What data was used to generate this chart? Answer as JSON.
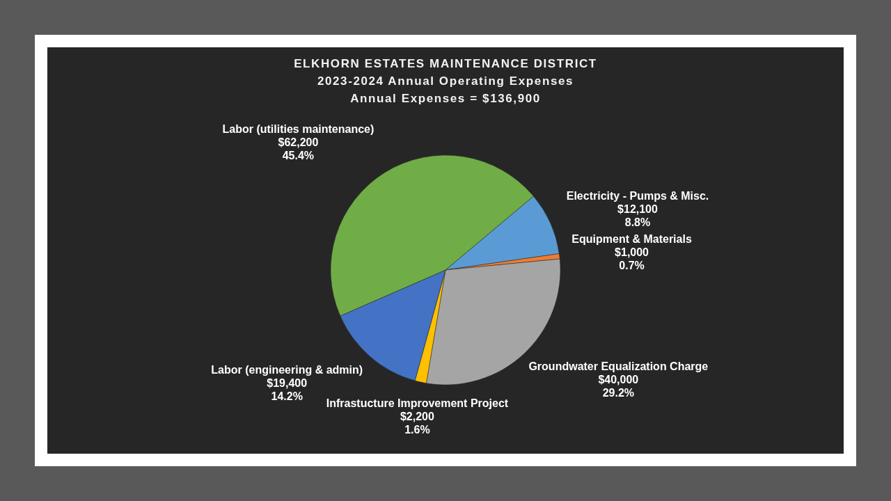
{
  "chart_data": {
    "type": "pie",
    "title": "ELKHORN ESTATES MAINTENANCE DISTRICT",
    "subtitle": "2023-2024 Annual Operating Expenses",
    "annotations": [
      "Annual Expenses = $136,900"
    ],
    "categories": [
      "Electricity - Pumps & Misc.",
      "Equipment & Materials",
      "Groundwater Equalization Charge",
      "Infrastucture Improvement Project",
      "Labor (engineering & admin)",
      "Labor (utilities maintenance)"
    ],
    "values": [
      12100,
      1000,
      40000,
      2200,
      19400,
      62200
    ],
    "colors": [
      "#5b9bd5",
      "#ed7d31",
      "#a5a5a5",
      "#ffc000",
      "#4472c4",
      "#70ad47"
    ],
    "value_labels": [
      "$12,100\n8.8%",
      "$1,000\n0.7%",
      "$40,000\n29.2%",
      "$2,200\n1.6%",
      "$19,400\n14.2%",
      "$62,200\n45.4%"
    ]
  }
}
